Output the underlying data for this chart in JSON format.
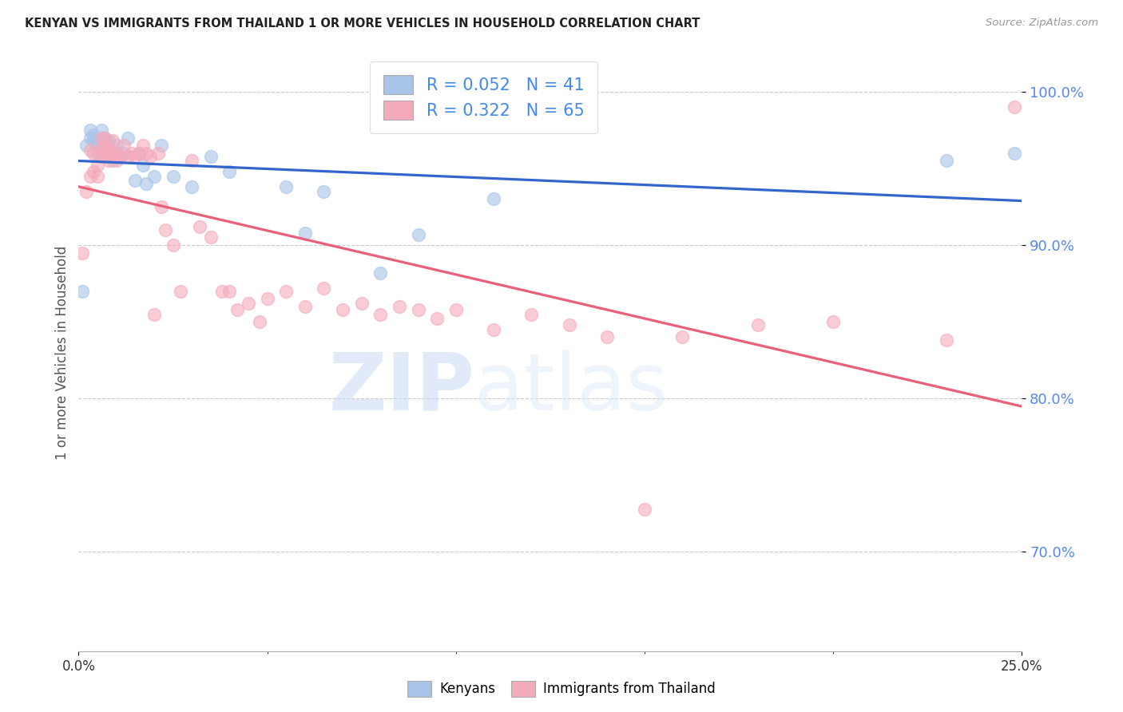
{
  "title": "KENYAN VS IMMIGRANTS FROM THAILAND 1 OR MORE VEHICLES IN HOUSEHOLD CORRELATION CHART",
  "source": "Source: ZipAtlas.com",
  "ylabel": "1 or more Vehicles in Household",
  "legend_label_blue": "Kenyans",
  "legend_label_pink": "Immigrants from Thailand",
  "watermark_zip": "ZIP",
  "watermark_atlas": "atlas",
  "blue_R": 0.052,
  "blue_N": 41,
  "pink_R": 0.322,
  "pink_N": 65,
  "blue_color": "#a8c4e8",
  "pink_color": "#f5aabb",
  "blue_line_color": "#3366cc",
  "pink_line_color": "#e8607a",
  "xlim": [
    0.0,
    0.25
  ],
  "ylim": [
    0.635,
    1.025
  ],
  "ytick_vals": [
    0.7,
    0.8,
    0.9,
    1.0
  ],
  "ytick_labels": [
    "70.0%",
    "80.0%",
    "90.0%",
    "100.0%"
  ],
  "blue_x": [
    0.001,
    0.002,
    0.003,
    0.003,
    0.004,
    0.004,
    0.005,
    0.005,
    0.006,
    0.006,
    0.007,
    0.007,
    0.007,
    0.008,
    0.008,
    0.008,
    0.009,
    0.009,
    0.01,
    0.01,
    0.011,
    0.012,
    0.013,
    0.015,
    0.016,
    0.017,
    0.018,
    0.02,
    0.022,
    0.025,
    0.03,
    0.035,
    0.04,
    0.055,
    0.06,
    0.065,
    0.08,
    0.09,
    0.11,
    0.23,
    0.248
  ],
  "blue_y": [
    0.87,
    0.965,
    0.97,
    0.975,
    0.968,
    0.972,
    0.965,
    0.96,
    0.968,
    0.975,
    0.963,
    0.968,
    0.97,
    0.958,
    0.962,
    0.968,
    0.955,
    0.96,
    0.96,
    0.965,
    0.958,
    0.96,
    0.97,
    0.942,
    0.96,
    0.952,
    0.94,
    0.945,
    0.965,
    0.945,
    0.938,
    0.958,
    0.948,
    0.938,
    0.908,
    0.935,
    0.882,
    0.907,
    0.93,
    0.955,
    0.96
  ],
  "pink_x": [
    0.001,
    0.002,
    0.003,
    0.003,
    0.004,
    0.004,
    0.005,
    0.005,
    0.006,
    0.006,
    0.006,
    0.007,
    0.007,
    0.007,
    0.008,
    0.008,
    0.008,
    0.009,
    0.009,
    0.01,
    0.01,
    0.011,
    0.012,
    0.013,
    0.014,
    0.015,
    0.016,
    0.017,
    0.018,
    0.019,
    0.02,
    0.021,
    0.022,
    0.023,
    0.025,
    0.027,
    0.03,
    0.032,
    0.035,
    0.038,
    0.04,
    0.042,
    0.045,
    0.048,
    0.05,
    0.055,
    0.06,
    0.065,
    0.07,
    0.075,
    0.08,
    0.085,
    0.09,
    0.095,
    0.1,
    0.11,
    0.12,
    0.13,
    0.14,
    0.15,
    0.16,
    0.18,
    0.2,
    0.23,
    0.248
  ],
  "pink_y": [
    0.895,
    0.935,
    0.945,
    0.962,
    0.948,
    0.96,
    0.945,
    0.952,
    0.958,
    0.963,
    0.97,
    0.958,
    0.963,
    0.97,
    0.96,
    0.955,
    0.963,
    0.96,
    0.968,
    0.955,
    0.96,
    0.958,
    0.965,
    0.958,
    0.96,
    0.958,
    0.96,
    0.965,
    0.96,
    0.958,
    0.855,
    0.96,
    0.925,
    0.91,
    0.9,
    0.87,
    0.955,
    0.912,
    0.905,
    0.87,
    0.87,
    0.858,
    0.862,
    0.85,
    0.865,
    0.87,
    0.86,
    0.872,
    0.858,
    0.862,
    0.855,
    0.86,
    0.858,
    0.852,
    0.858,
    0.845,
    0.855,
    0.848,
    0.84,
    0.728,
    0.84,
    0.848,
    0.85,
    0.838,
    0.99
  ]
}
